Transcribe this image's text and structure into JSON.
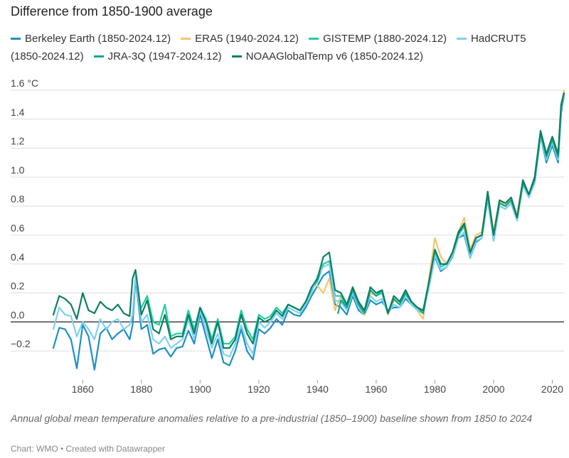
{
  "chart_data": {
    "type": "line",
    "title": "Difference from 1850-1900 average",
    "ylabel_unit": "°C",
    "xlim": [
      1850,
      2024
    ],
    "ylim": [
      -0.4,
      1.6
    ],
    "x_ticks": [
      1860,
      1880,
      1900,
      1920,
      1940,
      1960,
      1980,
      2000,
      2020
    ],
    "x_tick_labels": [
      "1860",
      "1880",
      "1900",
      "1920",
      "1940",
      "1960",
      "1980",
      "2000",
      "2020"
    ],
    "y_ticks": [
      -0.2,
      0.0,
      0.2,
      0.4,
      0.6,
      0.8,
      1.0,
      1.2,
      1.4,
      1.6
    ],
    "y_tick_labels": [
      "−0.2",
      "0.0",
      "0.2",
      "0.4",
      "0.6",
      "0.8",
      "1.0",
      "1.2",
      "1.4",
      "1.6 °C"
    ],
    "grid": true,
    "legend_position": "top",
    "series": [
      {
        "name": "Berkeley Earth (1850-2024.12)",
        "color": "#1f8fc4",
        "x": [
          1850,
          1852,
          1854,
          1856,
          1858,
          1860,
          1862,
          1864,
          1866,
          1868,
          1870,
          1872,
          1874,
          1876,
          1877,
          1878,
          1880,
          1882,
          1884,
          1886,
          1888,
          1890,
          1892,
          1894,
          1896,
          1898,
          1900,
          1902,
          1904,
          1906,
          1908,
          1910,
          1912,
          1914,
          1916,
          1918,
          1920,
          1922,
          1924,
          1926,
          1928,
          1930,
          1932,
          1934,
          1936,
          1938,
          1940,
          1942,
          1944,
          1946,
          1948,
          1950,
          1952,
          1954,
          1956,
          1958,
          1960,
          1962,
          1964,
          1966,
          1968,
          1970,
          1972,
          1974,
          1976,
          1978,
          1980,
          1982,
          1984,
          1986,
          1988,
          1990,
          1992,
          1994,
          1996,
          1998,
          2000,
          2002,
          2004,
          2006,
          2008,
          2010,
          2012,
          2014,
          2016,
          2018,
          2020,
          2022,
          2023,
          2024
        ],
        "values": [
          -0.18,
          -0.04,
          -0.05,
          -0.12,
          -0.32,
          -0.02,
          -0.1,
          -0.33,
          -0.08,
          -0.04,
          -0.12,
          -0.08,
          -0.05,
          -0.12,
          -0.02,
          0.3,
          -0.05,
          -0.02,
          -0.22,
          -0.19,
          -0.18,
          -0.24,
          -0.18,
          -0.17,
          -0.06,
          -0.15,
          0.05,
          -0.1,
          -0.25,
          -0.12,
          -0.28,
          -0.3,
          -0.2,
          -0.05,
          -0.2,
          -0.26,
          -0.05,
          -0.08,
          -0.04,
          0.02,
          -0.02,
          0.08,
          0.05,
          0.04,
          0.1,
          0.18,
          0.25,
          0.32,
          0.35,
          0.12,
          0.1,
          0.05,
          0.18,
          0.08,
          0.05,
          0.15,
          0.12,
          0.14,
          0.08,
          0.1,
          0.1,
          0.16,
          0.12,
          0.1,
          0.08,
          0.24,
          0.45,
          0.35,
          0.38,
          0.45,
          0.58,
          0.6,
          0.44,
          0.55,
          0.58,
          0.85,
          0.56,
          0.8,
          0.78,
          0.82,
          0.7,
          0.95,
          0.86,
          0.96,
          1.28,
          1.1,
          1.22,
          1.1,
          1.44,
          1.56
        ]
      },
      {
        "name": "ERA5 (1940-2024.12)",
        "color": "#f7c46c",
        "x": [
          1940,
          1942,
          1944,
          1946,
          1948,
          1950,
          1952,
          1954,
          1956,
          1958,
          1960,
          1962,
          1964,
          1966,
          1968,
          1970,
          1972,
          1974,
          1976,
          1978,
          1980,
          1982,
          1984,
          1986,
          1988,
          1990,
          1992,
          1994,
          1996,
          1998,
          2000,
          2002,
          2004,
          2006,
          2008,
          2010,
          2012,
          2014,
          2016,
          2018,
          2020,
          2022,
          2023,
          2024
        ],
        "values": [
          0.25,
          0.2,
          0.3,
          0.08,
          0.18,
          0.1,
          0.22,
          0.1,
          0.05,
          0.2,
          0.18,
          0.2,
          0.05,
          0.15,
          0.12,
          0.2,
          0.14,
          0.08,
          0.02,
          0.3,
          0.58,
          0.45,
          0.4,
          0.48,
          0.62,
          0.72,
          0.5,
          0.6,
          0.62,
          0.9,
          0.62,
          0.84,
          0.8,
          0.86,
          0.74,
          0.98,
          0.88,
          0.98,
          1.3,
          1.12,
          1.25,
          1.12,
          1.5,
          1.6
        ]
      },
      {
        "name": "GISTEMP (1880-2024.12)",
        "color": "#1fcea0",
        "x": [
          1880,
          1882,
          1884,
          1886,
          1888,
          1890,
          1892,
          1894,
          1896,
          1898,
          1900,
          1902,
          1904,
          1906,
          1908,
          1910,
          1912,
          1914,
          1916,
          1918,
          1920,
          1922,
          1924,
          1926,
          1928,
          1930,
          1932,
          1934,
          1936,
          1938,
          1940,
          1942,
          1944,
          1946,
          1948,
          1950,
          1952,
          1954,
          1956,
          1958,
          1960,
          1962,
          1964,
          1966,
          1968,
          1970,
          1972,
          1974,
          1976,
          1978,
          1980,
          1982,
          1984,
          1986,
          1988,
          1990,
          1992,
          1994,
          1996,
          1998,
          2000,
          2002,
          2004,
          2006,
          2008,
          2010,
          2012,
          2014,
          2016,
          2018,
          2020,
          2022,
          2023,
          2024
        ],
        "values": [
          0.1,
          0.18,
          0.0,
          -0.02,
          0.12,
          -0.1,
          -0.08,
          -0.08,
          0.08,
          -0.05,
          0.1,
          0.02,
          -0.12,
          0.02,
          -0.15,
          -0.15,
          -0.1,
          0.08,
          -0.05,
          -0.12,
          0.05,
          0.02,
          0.04,
          0.1,
          0.06,
          0.12,
          0.1,
          0.08,
          0.14,
          0.22,
          0.28,
          0.4,
          0.42,
          0.18,
          0.18,
          0.1,
          0.22,
          0.12,
          0.08,
          0.22,
          0.18,
          0.2,
          0.06,
          0.16,
          0.12,
          0.2,
          0.12,
          0.1,
          0.06,
          0.26,
          0.48,
          0.38,
          0.4,
          0.48,
          0.6,
          0.66,
          0.46,
          0.58,
          0.6,
          0.88,
          0.58,
          0.82,
          0.8,
          0.84,
          0.72,
          0.96,
          0.88,
          0.98,
          1.3,
          1.14,
          1.26,
          1.14,
          1.48,
          1.58
        ]
      },
      {
        "name": "HadCRUT5 (1850-2024.12)",
        "color": "#7fd0f4",
        "x": [
          1850,
          1852,
          1854,
          1856,
          1858,
          1860,
          1862,
          1864,
          1866,
          1868,
          1870,
          1872,
          1874,
          1876,
          1877,
          1878,
          1880,
          1882,
          1884,
          1886,
          1888,
          1890,
          1892,
          1894,
          1896,
          1898,
          1900,
          1902,
          1904,
          1906,
          1908,
          1910,
          1912,
          1914,
          1916,
          1918,
          1920,
          1922,
          1924,
          1926,
          1928,
          1930,
          1932,
          1934,
          1936,
          1938,
          1940,
          1942,
          1944,
          1946,
          1948,
          1950,
          1952,
          1954,
          1956,
          1958,
          1960,
          1962,
          1964,
          1966,
          1968,
          1970,
          1972,
          1974,
          1976,
          1978,
          1980,
          1982,
          1984,
          1986,
          1988,
          1990,
          1992,
          1994,
          1996,
          1998,
          2000,
          2002,
          2004,
          2006,
          2008,
          2010,
          2012,
          2014,
          2016,
          2018,
          2020,
          2022,
          2023,
          2024
        ],
        "values": [
          -0.05,
          0.1,
          0.05,
          0.04,
          -0.1,
          0.0,
          -0.05,
          -0.12,
          0.02,
          -0.05,
          0.0,
          0.02,
          -0.05,
          -0.02,
          0.05,
          0.32,
          0.0,
          0.05,
          -0.12,
          -0.15,
          -0.1,
          -0.18,
          -0.15,
          -0.12,
          0.02,
          -0.12,
          0.08,
          -0.05,
          -0.18,
          -0.08,
          -0.22,
          -0.24,
          -0.15,
          -0.02,
          -0.15,
          -0.22,
          0.0,
          -0.04,
          0.0,
          0.06,
          0.02,
          0.1,
          0.08,
          0.06,
          0.12,
          0.2,
          0.32,
          0.38,
          0.4,
          0.15,
          0.14,
          0.08,
          0.2,
          0.1,
          0.06,
          0.18,
          0.14,
          0.16,
          0.06,
          0.12,
          0.1,
          0.18,
          0.12,
          0.08,
          0.06,
          0.24,
          0.46,
          0.36,
          0.38,
          0.46,
          0.58,
          0.62,
          0.44,
          0.56,
          0.58,
          0.86,
          0.56,
          0.8,
          0.78,
          0.82,
          0.7,
          0.94,
          0.86,
          0.96,
          1.28,
          1.12,
          1.24,
          1.12,
          1.46,
          1.56
        ]
      },
      {
        "name": "JRA-3Q (1947-2024.12)",
        "color": "#16a88c",
        "x": [
          1947,
          1948,
          1950,
          1952,
          1954,
          1956,
          1958,
          1960,
          1962,
          1964,
          1966,
          1968,
          1970,
          1972,
          1974,
          1976,
          1978,
          1980,
          1982,
          1984,
          1986,
          1988,
          1990,
          1992,
          1994,
          1996,
          1998,
          2000,
          2002,
          2004,
          2006,
          2008,
          2010,
          2012,
          2014,
          2016,
          2018,
          2020,
          2022,
          2023,
          2024
        ],
        "values": [
          0.06,
          0.15,
          0.1,
          0.22,
          0.12,
          0.06,
          0.22,
          0.18,
          0.22,
          0.06,
          0.16,
          0.12,
          0.2,
          0.14,
          0.1,
          0.06,
          0.28,
          0.5,
          0.4,
          0.4,
          0.48,
          0.6,
          0.68,
          0.48,
          0.58,
          0.6,
          0.88,
          0.6,
          0.82,
          0.8,
          0.84,
          0.72,
          0.96,
          0.88,
          0.98,
          1.3,
          1.14,
          1.26,
          1.14,
          1.48,
          1.58
        ]
      },
      {
        "name": "NOAAGlobalTemp v6 (1850-2024.12)",
        "color": "#0d7f61",
        "x": [
          1850,
          1852,
          1854,
          1856,
          1858,
          1860,
          1862,
          1864,
          1866,
          1868,
          1870,
          1872,
          1874,
          1876,
          1877,
          1878,
          1880,
          1882,
          1884,
          1886,
          1888,
          1890,
          1892,
          1894,
          1896,
          1898,
          1900,
          1902,
          1904,
          1906,
          1908,
          1910,
          1912,
          1914,
          1916,
          1918,
          1920,
          1922,
          1924,
          1926,
          1928,
          1930,
          1932,
          1934,
          1936,
          1938,
          1940,
          1942,
          1944,
          1946,
          1948,
          1950,
          1952,
          1954,
          1956,
          1958,
          1960,
          1962,
          1964,
          1966,
          1968,
          1970,
          1972,
          1974,
          1976,
          1978,
          1980,
          1982,
          1984,
          1986,
          1988,
          1990,
          1992,
          1994,
          1996,
          1998,
          2000,
          2002,
          2004,
          2006,
          2008,
          2010,
          2012,
          2014,
          2016,
          2018,
          2020,
          2022,
          2023,
          2024
        ],
        "values": [
          0.05,
          0.18,
          0.16,
          0.12,
          0.02,
          0.2,
          0.08,
          0.06,
          0.14,
          0.1,
          0.08,
          0.12,
          0.06,
          0.04,
          0.3,
          0.36,
          0.05,
          0.15,
          -0.05,
          -0.08,
          0.05,
          -0.12,
          -0.1,
          -0.1,
          0.05,
          -0.08,
          0.1,
          0.0,
          -0.15,
          0.0,
          -0.18,
          -0.18,
          -0.12,
          0.05,
          -0.08,
          -0.15,
          0.03,
          0.0,
          0.02,
          0.08,
          0.04,
          0.12,
          0.1,
          0.08,
          0.14,
          0.24,
          0.3,
          0.45,
          0.48,
          0.22,
          0.2,
          0.12,
          0.24,
          0.14,
          0.08,
          0.24,
          0.2,
          0.22,
          0.06,
          0.18,
          0.14,
          0.22,
          0.14,
          0.1,
          0.08,
          0.28,
          0.5,
          0.4,
          0.4,
          0.48,
          0.62,
          0.68,
          0.48,
          0.58,
          0.6,
          0.9,
          0.6,
          0.84,
          0.82,
          0.86,
          0.72,
          0.98,
          0.88,
          1.0,
          1.32,
          1.16,
          1.28,
          1.16,
          1.5,
          1.58
        ]
      }
    ]
  },
  "legend": [
    {
      "label": "Berkeley Earth (1850-2024.12)",
      "color": "#1f8fc4"
    },
    {
      "label": "ERA5 (1940-2024.12)",
      "color": "#f7c46c"
    },
    {
      "label": "GISTEMP (1880-2024.12)",
      "color": "#1fcea0"
    },
    {
      "label": "HadCRUT5",
      "label_cont": "(1850-2024.12)",
      "color": "#7fd0f4"
    },
    {
      "label": "JRA-3Q (1947-2024.12)",
      "color": "#16a88c"
    },
    {
      "label": "NOAAGlobalTemp v6 (1850-2024.12)",
      "color": "#0d7f61"
    }
  ],
  "caption": "Annual global mean temperature anomalies relative to a pre-industrial (1850–1900) baseline shown from 1850 to 2024",
  "credit": "Chart: WMO • Created with Datawrapper"
}
